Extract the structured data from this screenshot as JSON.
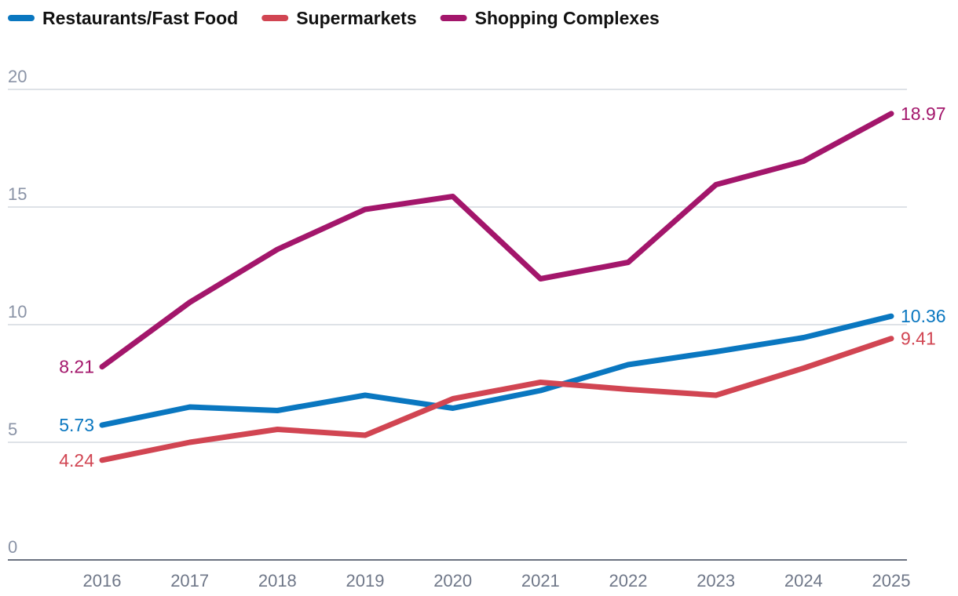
{
  "chart_data": {
    "type": "line",
    "title": "",
    "xlabel": "",
    "ylabel": "",
    "x": [
      "2016",
      "2017",
      "2018",
      "2019",
      "2020",
      "2021",
      "2022",
      "2023",
      "2024",
      "2025"
    ],
    "ylim": [
      0,
      20
    ],
    "yticks": [
      "0",
      "5",
      "10",
      "15",
      "20"
    ],
    "grid": true,
    "legend_position": "top-left",
    "series": [
      {
        "name": "Restaurants/Fast Food",
        "color": "#0a77c0",
        "values": [
          5.73,
          6.5,
          6.35,
          7.0,
          6.45,
          7.2,
          8.3,
          8.85,
          9.45,
          10.36
        ],
        "start_label": "5.73",
        "end_label": "10.36"
      },
      {
        "name": "Supermarkets",
        "color": "#d14552",
        "values": [
          4.24,
          5.0,
          5.55,
          5.3,
          6.85,
          7.55,
          7.25,
          7.0,
          8.15,
          9.41
        ],
        "start_label": "4.24",
        "end_label": "9.41"
      },
      {
        "name": "Shopping Complexes",
        "color": "#a3166b",
        "values": [
          8.21,
          10.95,
          13.2,
          14.9,
          15.45,
          11.95,
          12.65,
          15.95,
          16.95,
          18.97
        ],
        "start_label": "8.21",
        "end_label": "18.97"
      }
    ]
  }
}
